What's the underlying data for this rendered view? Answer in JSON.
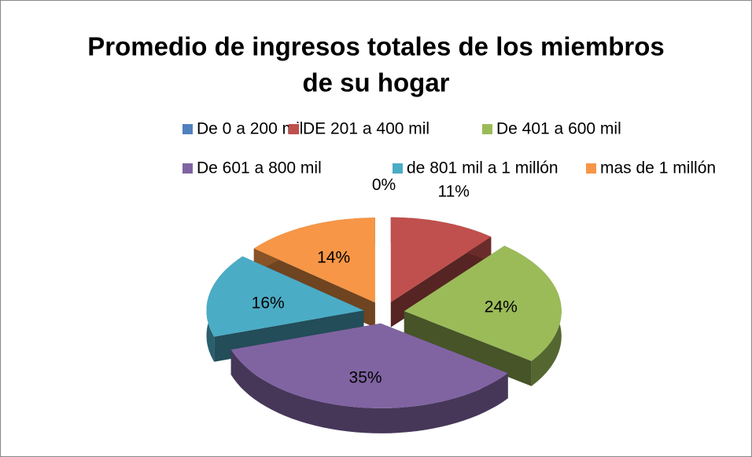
{
  "chart_data": {
    "type": "pie",
    "title": [
      "Promedio de ingresos totales de los miembros",
      "de su hogar"
    ],
    "categories": [
      "De 0 a 200 mil",
      "DE 201 a 400 mil",
      "De 401 a 600 mil",
      "De 601 a 800 mil",
      "de 801 mil a 1 millón",
      "mas de 1 millón"
    ],
    "values": [
      0,
      11,
      24,
      35,
      16,
      14
    ],
    "value_labels": [
      "0%",
      "11%",
      "24%",
      "35%",
      "16%",
      "14%"
    ],
    "colors": [
      "#4f81bd",
      "#c0504d",
      "#9bbb59",
      "#8064a2",
      "#4bacc6",
      "#f79646"
    ],
    "legend": "top"
  }
}
